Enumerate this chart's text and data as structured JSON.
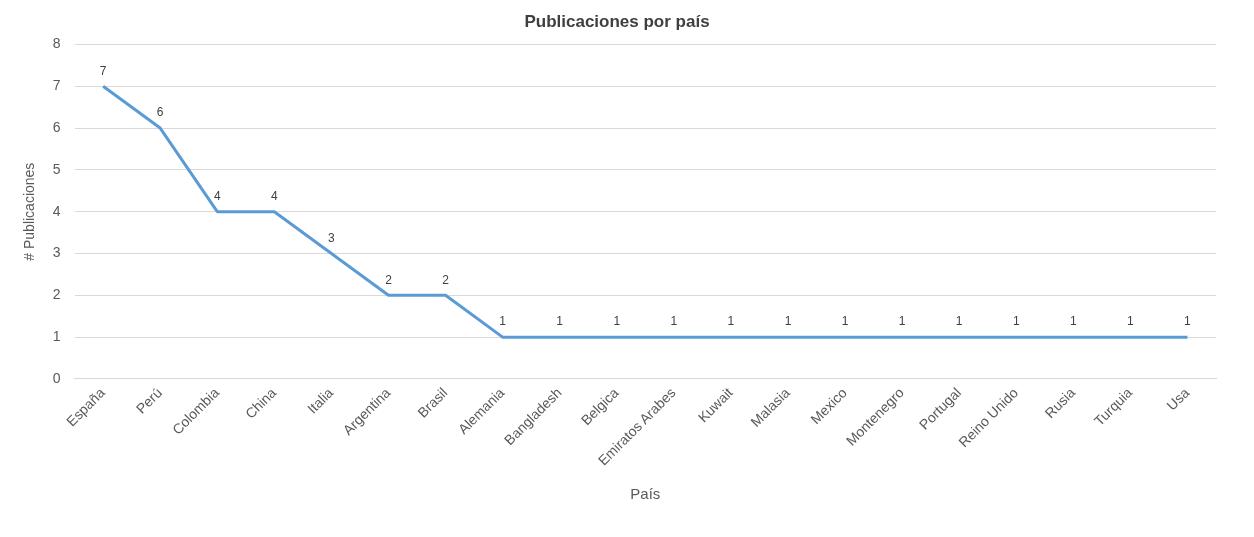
{
  "chart_data": {
    "type": "line",
    "title": "Publicaciones por país",
    "xlabel": "País",
    "ylabel": "# Publicaciones",
    "categories": [
      "España",
      "Perú",
      "Colombia",
      "China",
      "Italia",
      "Argentina",
      "Brasil",
      "Alemania",
      "Bangladesh",
      "Belgica",
      "Emiratos Arabes",
      "Kuwait",
      "Malasia",
      "Mexico",
      "Montenegro",
      "Portugal",
      "Reino Unido",
      "Rusia",
      "Turquia",
      "Usa"
    ],
    "series": [
      {
        "color": "#5b9bd5",
        "values": [
          7,
          6,
          4,
          4,
          3,
          2,
          2,
          1,
          1,
          1,
          1,
          1,
          1,
          1,
          1,
          1,
          1,
          1,
          1,
          1
        ]
      }
    ],
    "ylim": [
      0,
      8
    ],
    "yticks": [
      0,
      1,
      2,
      3,
      4,
      5,
      6,
      7,
      8
    ],
    "grid": "y",
    "legend": false,
    "marker": "none",
    "line_style": "solid",
    "data_labels": true
  }
}
